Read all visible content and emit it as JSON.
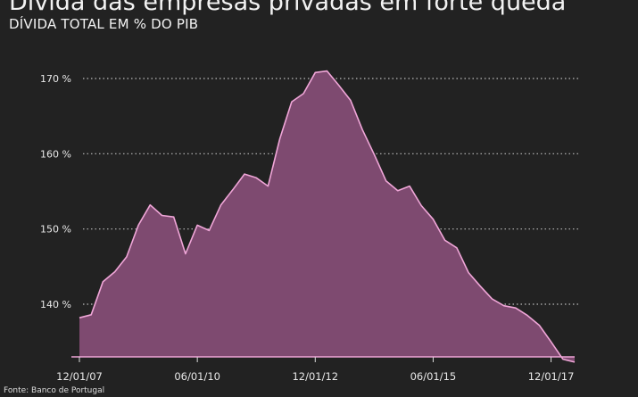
{
  "header": {
    "title": "Dívida das empresas privadas em forte queda",
    "subtitle": "DÍVIDA TOTAL EM % DO PIB"
  },
  "footer": {
    "source": "Fonte: Banco de Portugal"
  },
  "colors": {
    "background": "#222222",
    "area_fill": "#7e4a70",
    "line": "#f0a6d8",
    "grid": "#bbbbbb"
  },
  "chart_data": {
    "type": "area",
    "title": "Dívida das empresas privadas em forte queda",
    "subtitle": "DÍVIDA TOTAL EM % DO PIB",
    "xlabel": "",
    "ylabel": "",
    "ylim": [
      132,
      172
    ],
    "grid": "horizontal dotted",
    "legend": "none",
    "y_ticks": [
      {
        "value": 140,
        "label": "140 %"
      },
      {
        "value": 150,
        "label": "150 %"
      },
      {
        "value": 160,
        "label": "160 %"
      },
      {
        "value": 170,
        "label": "170 %"
      }
    ],
    "x_ticks": [
      {
        "index": 0,
        "label": "12/01/07"
      },
      {
        "index": 10,
        "label": "06/01/10"
      },
      {
        "index": 20,
        "label": "12/01/12"
      },
      {
        "index": 30,
        "label": "06/01/15"
      },
      {
        "index": 40,
        "label": "12/01/17"
      }
    ],
    "series": [
      {
        "values": [
          138.2,
          138.6,
          143.0,
          144.3,
          146.3,
          150.5,
          153.2,
          151.8,
          151.6,
          146.7,
          150.5,
          149.8,
          153.2,
          155.2,
          157.3,
          156.8,
          155.7,
          162.0,
          166.9,
          168.0,
          170.8,
          171.0,
          169.1,
          167.1,
          163.2,
          159.9,
          156.4,
          155.1,
          155.7,
          153.1,
          151.3,
          148.5,
          147.5,
          144.2,
          142.4,
          140.7,
          139.8,
          139.5,
          138.5,
          137.2,
          135.0,
          132.7,
          132.3
        ]
      }
    ]
  }
}
